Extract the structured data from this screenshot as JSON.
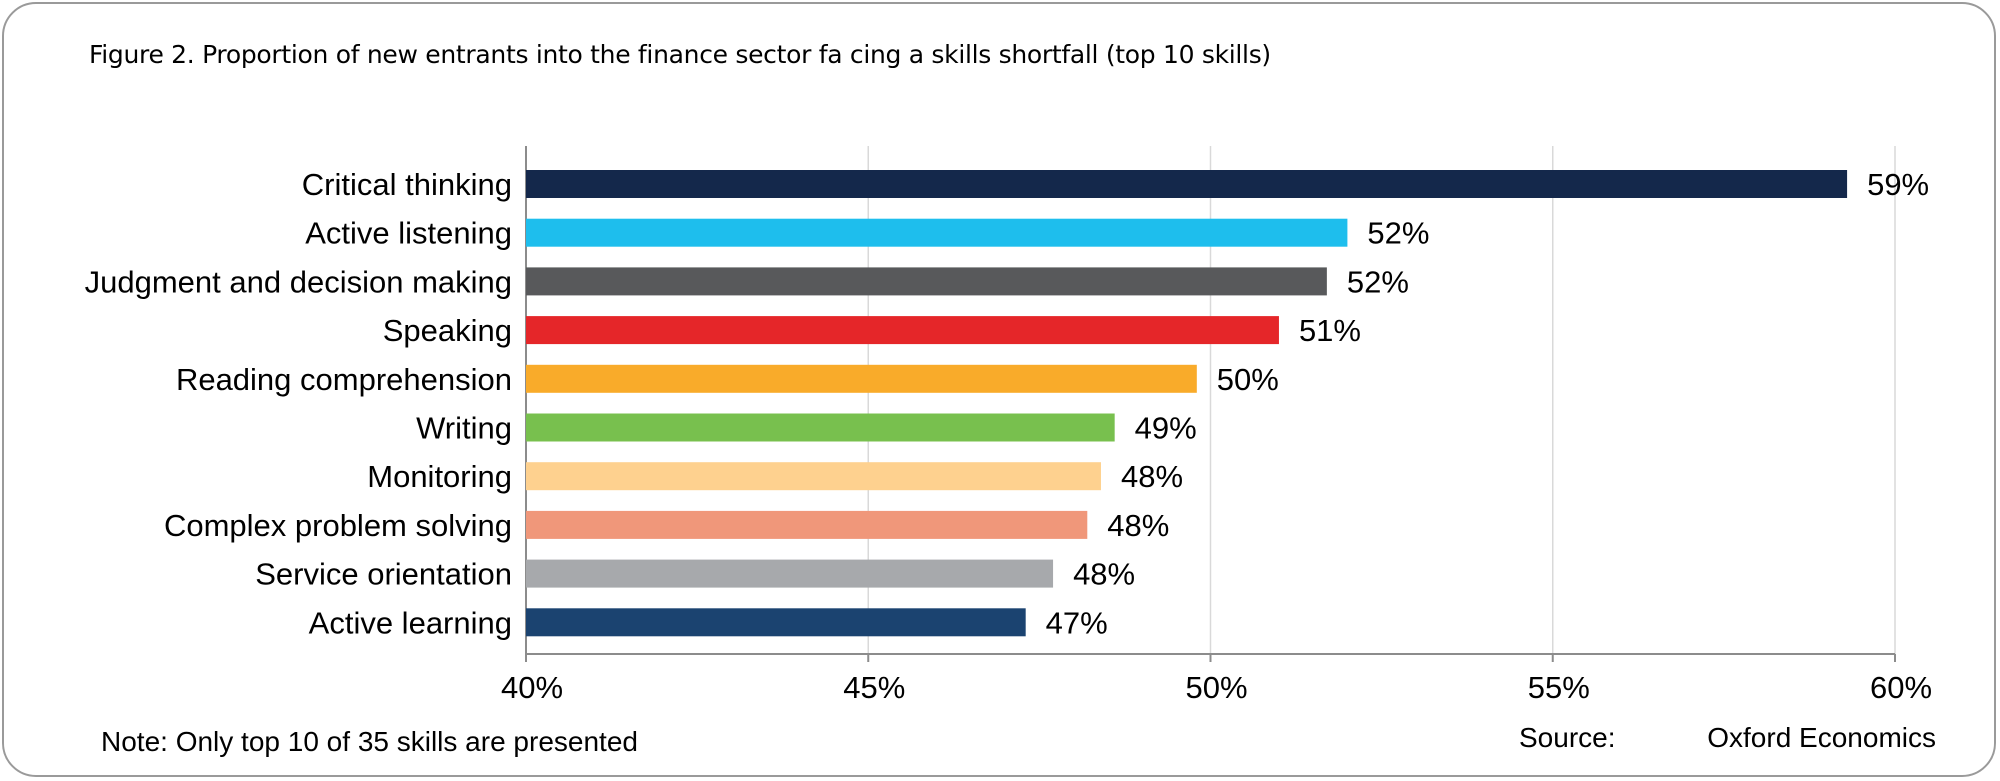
{
  "title": "Figure 2. Proportion of new entrants into the finance sector fa cing a skills shortfall (top 10 skills)",
  "note": "Note: Only top 10 of 35 skills are presented",
  "source": {
    "label": "Source:",
    "value": "Oxford Economics"
  },
  "chart_data": {
    "type": "bar",
    "orientation": "horizontal",
    "categories": [
      "Critical thinking",
      "Active listening",
      "Judgment and decision making",
      "Speaking",
      "Reading comprehension",
      "Writing",
      "Monitoring",
      "Complex problem solving",
      "Service orientation",
      "Active learning"
    ],
    "values": [
      59.3,
      52.0,
      51.7,
      51.0,
      49.8,
      48.6,
      48.4,
      48.2,
      47.7,
      47.3
    ],
    "data_labels": [
      "59%",
      "52%",
      "52%",
      "51%",
      "50%",
      "49%",
      "48%",
      "48%",
      "48%",
      "47%"
    ],
    "colors": [
      "#14284b",
      "#1ebeed",
      "#58595b",
      "#e52629",
      "#f9ab2a",
      "#78c04e",
      "#fed18f",
      "#f0977a",
      "#a7a9ac",
      "#1b4370"
    ],
    "xlim": [
      40,
      60
    ],
    "xticks": [
      40,
      45,
      50,
      55,
      60
    ],
    "xtick_labels": [
      "40%",
      "45%",
      "50%",
      "55%",
      "60%"
    ],
    "grid": true
  }
}
